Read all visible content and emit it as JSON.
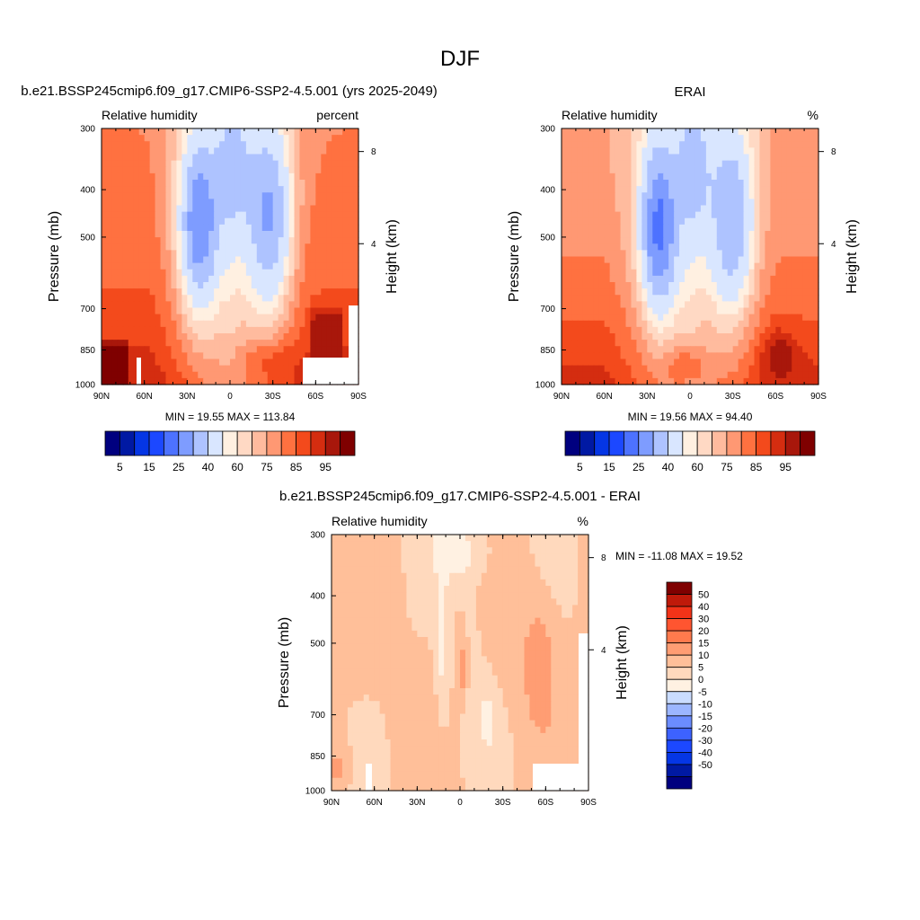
{
  "page": {
    "title": "DJF"
  },
  "colors": {
    "rh_levels": [
      "#00007f",
      "#0019a3",
      "#0536e5",
      "#1c48ff",
      "#4d72ff",
      "#7e9cff",
      "#aec3ff",
      "#d9e6ff",
      "#fff0e1",
      "#ffd9c4",
      "#ffbb9e",
      "#ff9873",
      "#ff7140",
      "#f34a1c",
      "#d42d10",
      "#a8170b",
      "#7f0000"
    ],
    "diff_levels": [
      "#00007f",
      "#0019a3",
      "#0536e5",
      "#1c48ff",
      "#3d62ff",
      "#6b8cff",
      "#9cb6ff",
      "#cadcff",
      "#fff1e2",
      "#ffd9bd",
      "#ffbf99",
      "#ff9d73",
      "#ff7a4d",
      "#ff5530",
      "#f23318",
      "#bf1a0a",
      "#7f0000"
    ]
  },
  "chart_data": [
    {
      "type": "heatmap",
      "title": "b.e21.BSSP245cmip6.f09_g17.CMIP6-SSP2-4.5.001 (yrs 2025-2049)",
      "left_label": "Relative humidity",
      "right_label": "percent",
      "ylabel": "Pressure (mb)",
      "y2label": "Height (km)",
      "x_ticks": [
        "90N",
        "60N",
        "30N",
        "0",
        "30S",
        "60S",
        "90S"
      ],
      "y_ticks": [
        "300",
        "400",
        "500",
        "700",
        "850",
        "1000"
      ],
      "y2_ticks": [
        "8",
        "4"
      ],
      "stats": "MIN =  19.55  MAX = 113.84",
      "colorbar_labels": [
        "5",
        "15",
        "25",
        "40",
        "60",
        "75",
        "85",
        "95"
      ]
    },
    {
      "type": "heatmap",
      "title": "ERAI",
      "left_label": "Relative humidity",
      "right_label": "%",
      "ylabel": "Pressure (mb)",
      "y2label": "Height (km)",
      "x_ticks": [
        "90N",
        "60N",
        "30N",
        "0",
        "30S",
        "60S",
        "90S"
      ],
      "y_ticks": [
        "300",
        "400",
        "500",
        "700",
        "850",
        "1000"
      ],
      "y2_ticks": [
        "8",
        "4"
      ],
      "stats": "MIN =  19.56  MAX =  94.40",
      "colorbar_labels": [
        "5",
        "15",
        "25",
        "40",
        "60",
        "75",
        "85",
        "95"
      ]
    },
    {
      "type": "heatmap",
      "title": "b.e21.BSSP245cmip6.f09_g17.CMIP6-SSP2-4.5.001 - ERAI",
      "left_label": "Relative humidity",
      "right_label": "%",
      "ylabel": "Pressure (mb)",
      "y2label": "Height (km)",
      "x_ticks": [
        "90N",
        "60N",
        "30N",
        "0",
        "30S",
        "60S",
        "90S"
      ],
      "y_ticks": [
        "300",
        "400",
        "500",
        "700",
        "850",
        "1000"
      ],
      "y2_ticks": [
        "8",
        "4"
      ],
      "stats": "MIN = -11.08  MAX =  19.52",
      "colorbar_labels": [
        "50",
        "40",
        "30",
        "20",
        "15",
        "10",
        "5",
        "0",
        "-5",
        "-10",
        "-15",
        "-20",
        "-30",
        "-40",
        "-50"
      ]
    }
  ]
}
